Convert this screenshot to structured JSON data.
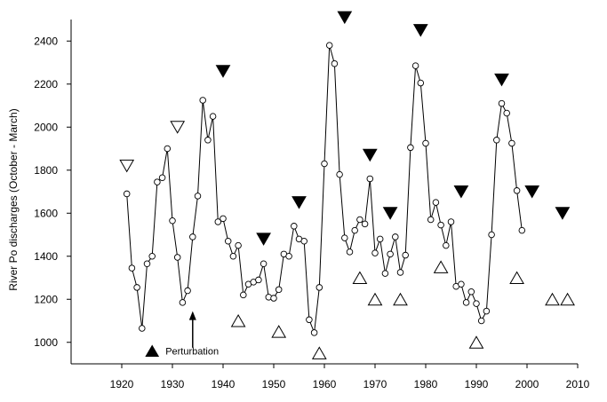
{
  "chart_data": {
    "type": "line",
    "title": "",
    "xlabel": "",
    "ylabel": "River Po discharges (October - March)",
    "xlim": [
      1910,
      2010
    ],
    "ylim": [
      900,
      2500
    ],
    "x_ticks": [
      1920,
      1930,
      1940,
      1950,
      1960,
      1970,
      1980,
      1990,
      2000,
      2010
    ],
    "y_ticks": [
      1000,
      1200,
      1400,
      1600,
      1800,
      2000,
      2200,
      2400
    ],
    "grid": false,
    "series": [
      {
        "marker": "open-circle",
        "line": "solid",
        "color": "#000000",
        "x": [
          1921,
          1922,
          1923,
          1924,
          1925,
          1926,
          1927,
          1928,
          1929,
          1930,
          1931,
          1932,
          1933,
          1934,
          1935,
          1936,
          1937,
          1938,
          1939,
          1940,
          1941,
          1942,
          1943,
          1944,
          1945,
          1946,
          1947,
          1948,
          1949,
          1950,
          1951,
          1952,
          1953,
          1954,
          1955,
          1956,
          1957,
          1958,
          1959,
          1960,
          1961,
          1962,
          1963,
          1964,
          1965,
          1966,
          1967,
          1968,
          1969,
          1970,
          1971,
          1972,
          1973,
          1974,
          1975,
          1976,
          1977,
          1978,
          1979,
          1980,
          1981,
          1982,
          1983,
          1984,
          1985,
          1986,
          1987,
          1988,
          1989,
          1990,
          1991,
          1992,
          1993,
          1994,
          1995,
          1996,
          1997,
          1998,
          1999
        ],
        "values": [
          1690,
          1345,
          1255,
          1065,
          1365,
          1400,
          1745,
          1765,
          1900,
          1565,
          1395,
          1185,
          1240,
          1490,
          1680,
          2125,
          1940,
          2050,
          1560,
          1575,
          1470,
          1400,
          1450,
          1220,
          1270,
          1280,
          1290,
          1365,
          1210,
          1205,
          1245,
          1410,
          1400,
          1540,
          1480,
          1470,
          1105,
          1045,
          1255,
          1830,
          2380,
          2295,
          1780,
          1485,
          1420,
          1520,
          1570,
          1550,
          1760,
          1415,
          1480,
          1320,
          1410,
          1490,
          1325,
          1405,
          1905,
          2285,
          2205,
          1925,
          1570,
          1650,
          1545,
          1450,
          1560,
          1260,
          1270,
          1185,
          1235,
          1180,
          1100,
          1145,
          1500,
          1940,
          2110,
          2065,
          1925,
          1705,
          1520
        ]
      }
    ],
    "markers": {
      "filled_triangle_down": {
        "x": [
          1940,
          1948,
          1955,
          1964,
          1969,
          1973,
          1979,
          1987,
          1995,
          2001,
          2007
        ],
        "y": [
          2260,
          1480,
          1650,
          2510,
          1870,
          1600,
          2450,
          1700,
          2220,
          1700,
          1600
        ]
      },
      "open_triangle_down": {
        "x": [
          1921,
          1931
        ],
        "y": [
          1820,
          2000
        ]
      },
      "open_triangle_up": {
        "x": [
          1943,
          1951,
          1959,
          1967,
          1970,
          1975,
          1983,
          1990,
          1998,
          2005,
          2008
        ],
        "y": [
          1100,
          1050,
          950,
          1300,
          1200,
          1200,
          1350,
          1000,
          1300,
          1200,
          1200
        ]
      }
    },
    "legend_entry": {
      "symbol": "filled_triangle_up",
      "label": "Perturbation",
      "symbol_x": 1926,
      "symbol_y": 960
    },
    "annotation_arrow": {
      "x": 1934,
      "y_from": 975,
      "y_to": 1145
    }
  }
}
